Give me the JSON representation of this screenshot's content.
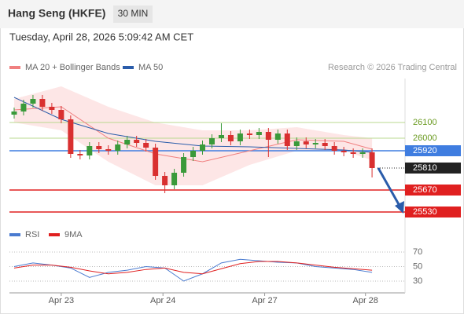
{
  "header": {
    "title": "Hang Seng (HKFE)",
    "timeframe": "30 MIN",
    "datetime": "Tuesday, April 28, 2026 5:09:42 AM CET"
  },
  "source": "Research © 2026 Trading Central",
  "chart_data": [
    {
      "type": "candlestick",
      "up_color": "#3a9a3a",
      "down_color": "#d93030",
      "xlim": [
        0,
        42
      ],
      "ylim": [
        25480,
        26380
      ],
      "x": [
        0.5,
        1.5,
        2.5,
        3.5,
        4.5,
        5.5,
        6.5,
        7.5,
        8.5,
        9.5,
        10.5,
        11.5,
        12.5,
        13.5,
        14.5,
        15.5,
        16.5,
        17.5,
        18.5,
        19.5,
        20.5,
        21.5,
        22.5,
        23.5,
        24.5,
        25.5,
        26.5,
        27.5,
        28.5,
        29.5,
        30.5,
        31.5,
        32.5,
        33.5,
        34.5,
        35.5,
        36.5,
        37.5,
        38.5
      ],
      "open": [
        26150,
        26170,
        26220,
        26250,
        26200,
        26180,
        26120,
        25900,
        25890,
        25950,
        25930,
        25920,
        25960,
        25990,
        25970,
        25940,
        25760,
        25700,
        25780,
        25880,
        25920,
        25960,
        26000,
        26020,
        25980,
        26030,
        26020,
        26040,
        25990,
        26030,
        25950,
        25980,
        25960,
        25970,
        25950,
        25920,
        25910,
        25900,
        25910
      ],
      "high": [
        26195,
        26245,
        26275,
        26275,
        26225,
        26205,
        26145,
        25925,
        25975,
        25975,
        25955,
        25985,
        26015,
        26015,
        25995,
        25965,
        25785,
        25805,
        25905,
        25945,
        25985,
        26025,
        26095,
        26045,
        26055,
        26055,
        26065,
        26065,
        26055,
        26055,
        26005,
        26005,
        25995,
        25995,
        25975,
        25945,
        25935,
        25935,
        25935
      ],
      "low": [
        26125,
        26145,
        26195,
        26175,
        26155,
        26095,
        25875,
        25865,
        25865,
        25905,
        25895,
        25895,
        25935,
        25945,
        25915,
        25735,
        25650,
        25675,
        25755,
        25855,
        25895,
        25935,
        25975,
        25955,
        25955,
        25995,
        25995,
        25880,
        25965,
        25925,
        25925,
        25935,
        25935,
        25925,
        25895,
        25885,
        25875,
        25875,
        25750
      ],
      "close": [
        26170,
        26220,
        26250,
        26200,
        26180,
        26120,
        25900,
        25890,
        25950,
        25930,
        25920,
        25960,
        25990,
        25970,
        25940,
        25760,
        25700,
        25780,
        25880,
        25920,
        25960,
        26000,
        26020,
        25980,
        26030,
        26020,
        26040,
        25990,
        26030,
        25950,
        25980,
        25960,
        25970,
        25950,
        25920,
        25910,
        25900,
        25910,
        25810
      ],
      "series": [
        {
          "name": "MA 20 + Bollinger Bands",
          "color": "#f08080",
          "band_color": "#fde0e0",
          "x": [
            0.5,
            5.5,
            10.5,
            15.5,
            20.5,
            25.5,
            30.5,
            35.5,
            38.5
          ],
          "values": [
            26180,
            26200,
            26000,
            25900,
            25850,
            25920,
            25990,
            25980,
            25930
          ],
          "upper": [
            26250,
            26330,
            26200,
            26100,
            26050,
            26050,
            26070,
            26020,
            26000
          ],
          "lower": [
            26100,
            26050,
            25850,
            25700,
            25700,
            25830,
            25920,
            25920,
            25860
          ]
        },
        {
          "name": "MA 50",
          "color": "#2a5caa",
          "x": [
            0.5,
            5.5,
            10.5,
            15.5,
            20.5,
            25.5,
            30.5,
            35.5,
            38.5
          ],
          "values": [
            26260,
            26120,
            26030,
            25980,
            25950,
            25945,
            25935,
            25925,
            25910
          ]
        }
      ],
      "levels": [
        {
          "value": 26100,
          "color": "#b9d88f",
          "text_color": "#6a9a20",
          "style": "plain"
        },
        {
          "value": 26000,
          "color": "#b9d88f",
          "text_color": "#6a9a20",
          "style": "plain"
        },
        {
          "value": 25920,
          "color": "#3f7de0",
          "text_color": "#ffffff",
          "style": "box"
        },
        {
          "value": 25810,
          "color": "#222222",
          "text_color": "#ffffff",
          "style": "current"
        },
        {
          "value": 25670,
          "color": "#e02020",
          "text_color": "#ffffff",
          "style": "box"
        },
        {
          "value": 25530,
          "color": "#e02020",
          "text_color": "#ffffff",
          "style": "box"
        }
      ]
    },
    {
      "type": "line",
      "xlim": [
        0,
        42
      ],
      "ylim": [
        17,
        76.5
      ],
      "yticks": [
        70,
        50,
        30
      ],
      "xticks": [
        {
          "value": 5.5,
          "label": "Apr 23"
        },
        {
          "value": 16.3,
          "label": "Apr 24"
        },
        {
          "value": 27.1,
          "label": "Apr 27"
        },
        {
          "value": 37.8,
          "label": "Apr 28"
        }
      ],
      "series": [
        {
          "name": "RSI",
          "color": "#4a7bd0",
          "x": [
            0.5,
            2.5,
            4.5,
            6.5,
            8.5,
            10.5,
            12.5,
            14.5,
            16.5,
            18.5,
            20.5,
            22.5,
            24.5,
            26.5,
            28.5,
            30.5,
            32.5,
            34.5,
            36.5,
            38.5
          ],
          "values": [
            50,
            55,
            52,
            48,
            35,
            42,
            45,
            50,
            48,
            30,
            40,
            55,
            60,
            58,
            56,
            55,
            50,
            48,
            46,
            42
          ]
        },
        {
          "name": "9MA",
          "color": "#e02020",
          "x": [
            0.5,
            2.5,
            4.5,
            6.5,
            8.5,
            10.5,
            12.5,
            14.5,
            16.5,
            18.5,
            20.5,
            22.5,
            24.5,
            26.5,
            28.5,
            30.5,
            32.5,
            34.5,
            36.5,
            38.5
          ],
          "values": [
            48,
            52,
            52,
            49,
            44,
            40,
            42,
            46,
            48,
            42,
            40,
            47,
            54,
            57,
            57,
            55,
            52,
            49,
            47,
            45
          ]
        }
      ]
    }
  ]
}
